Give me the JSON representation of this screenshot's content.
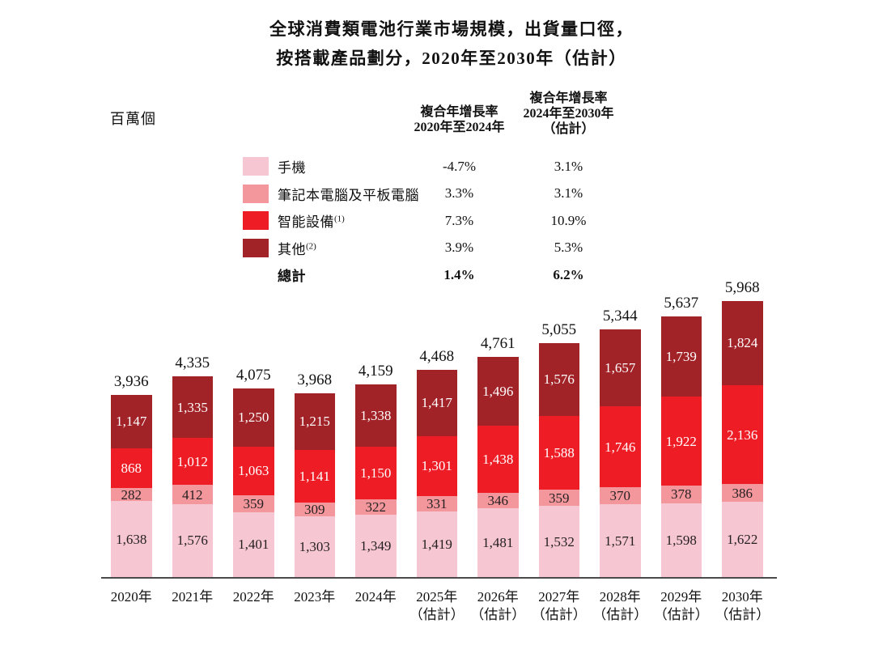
{
  "title": {
    "line1": "全球消費類電池行業市場規模，出貨量口徑，",
    "line2": "按搭載產品劃分，2020年至2030年（估計）"
  },
  "unit_label": "百萬個",
  "legend": {
    "header_col1": [
      "複合年增長率",
      "2020年至2024年"
    ],
    "header_col2": [
      "複合年增長率",
      "2024年至2030年",
      "（估計）"
    ],
    "rows": [
      {
        "label": "手機",
        "sup": "",
        "swatch_color": "#f6c6d2",
        "cagr_2020_2024": "-4.7%",
        "cagr_2024_2030": "3.1%"
      },
      {
        "label": "筆記本電腦及平板電腦",
        "sup": "",
        "swatch_color": "#f4979c",
        "cagr_2020_2024": "3.3%",
        "cagr_2024_2030": "3.1%"
      },
      {
        "label": "智能設備",
        "sup": "(1)",
        "swatch_color": "#ee1c25",
        "cagr_2020_2024": "7.3%",
        "cagr_2024_2030": "10.9%"
      },
      {
        "label": "其他",
        "sup": "(2)",
        "swatch_color": "#a12227",
        "cagr_2020_2024": "3.9%",
        "cagr_2024_2030": "5.3%"
      }
    ],
    "total_row": {
      "label": "總計",
      "cagr_2020_2024": "1.4%",
      "cagr_2024_2030": "6.2%"
    }
  },
  "chart_data": {
    "type": "bar",
    "stacked": true,
    "unit": "百萬個",
    "ylabel": "百萬個",
    "ylim": [
      0,
      6000
    ],
    "grid": false,
    "legend_position": "top",
    "categories": [
      {
        "year": "2020年",
        "note": ""
      },
      {
        "year": "2021年",
        "note": ""
      },
      {
        "year": "2022年",
        "note": ""
      },
      {
        "year": "2023年",
        "note": ""
      },
      {
        "year": "2024年",
        "note": ""
      },
      {
        "year": "2025年",
        "note": "（估計）"
      },
      {
        "year": "2026年",
        "note": "（估計）"
      },
      {
        "year": "2027年",
        "note": "（估計）"
      },
      {
        "year": "2028年",
        "note": "（估計）"
      },
      {
        "year": "2029年",
        "note": "（估計）"
      },
      {
        "year": "2030年",
        "note": "（估計）"
      }
    ],
    "series": [
      {
        "name": "手機",
        "color": "#f6c6d2",
        "text_color": "#231f20",
        "values": [
          1638,
          1576,
          1401,
          1303,
          1349,
          1419,
          1481,
          1532,
          1571,
          1598,
          1622
        ]
      },
      {
        "name": "筆記本電腦及平板電腦",
        "color": "#f4979c",
        "text_color": "#231f20",
        "values": [
          282,
          412,
          359,
          309,
          322,
          331,
          346,
          359,
          370,
          378,
          386
        ]
      },
      {
        "name": "智能設備",
        "color": "#ee1c25",
        "text_color": "#ffffff",
        "values": [
          868,
          1012,
          1063,
          1141,
          1150,
          1301,
          1438,
          1588,
          1746,
          1922,
          2136
        ]
      },
      {
        "name": "其他",
        "color": "#a12227",
        "text_color": "#ffffff",
        "values": [
          1147,
          1335,
          1250,
          1215,
          1338,
          1417,
          1496,
          1576,
          1657,
          1739,
          1824
        ]
      }
    ],
    "totals": [
      3936,
      4335,
      4075,
      3968,
      4159,
      4468,
      4761,
      5055,
      5344,
      5637,
      5968
    ]
  }
}
